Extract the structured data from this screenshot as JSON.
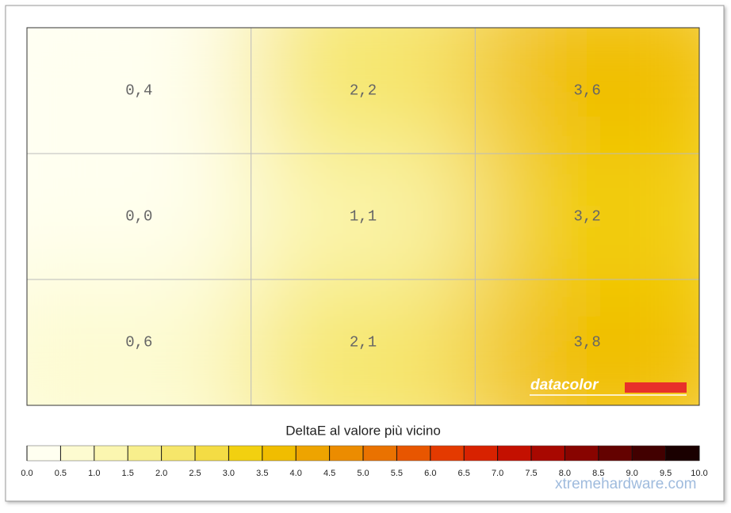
{
  "chart_data": {
    "type": "heatmap",
    "title": "DeltaE al valore più vicino",
    "values": [
      [
        0.4,
        2.2,
        3.6
      ],
      [
        0.0,
        1.1,
        3.2
      ],
      [
        0.6,
        2.1,
        3.8
      ]
    ],
    "value_labels": [
      [
        "0,4",
        "2,2",
        "3,6"
      ],
      [
        "0,0",
        "1,1",
        "3,2"
      ],
      [
        "0,6",
        "2,1",
        "3,8"
      ]
    ],
    "colorbar": {
      "lim": [
        0,
        10
      ],
      "ticks": [
        {
          "value": 0,
          "label": "0.0"
        },
        0.5,
        {
          "value": 1,
          "label": "1.0"
        },
        1.5,
        {
          "value": 2,
          "label": "2.0"
        },
        2.5,
        {
          "value": 3,
          "label": "3.0"
        },
        3.5,
        {
          "value": 4,
          "label": "4.0"
        },
        4.5,
        {
          "value": 5,
          "label": "5.0"
        },
        5.5,
        {
          "value": 6,
          "label": "6.0"
        },
        6.5,
        {
          "value": 7,
          "label": "7.0"
        },
        7.5,
        {
          "value": 8,
          "label": "8.0"
        },
        8.5,
        {
          "value": 9,
          "label": "9.0"
        },
        9.5,
        {
          "value": 10,
          "label": "10.0"
        }
      ],
      "colors": [
        "#fffff0",
        "#fdfbd0",
        "#fbf6b0",
        "#f8ef8c",
        "#f6e66a",
        "#f4dc44",
        "#f2d010",
        "#f0bd00",
        "#eea400",
        "#ec8c00",
        "#ea7200",
        "#e85600",
        "#e43a00",
        "#d82200",
        "#c41000",
        "#a80800",
        "#880400",
        "#640200",
        "#420000",
        "#1a0000"
      ]
    },
    "grid": true
  },
  "logo": "datacolor",
  "watermark": "xtremehardware.com"
}
